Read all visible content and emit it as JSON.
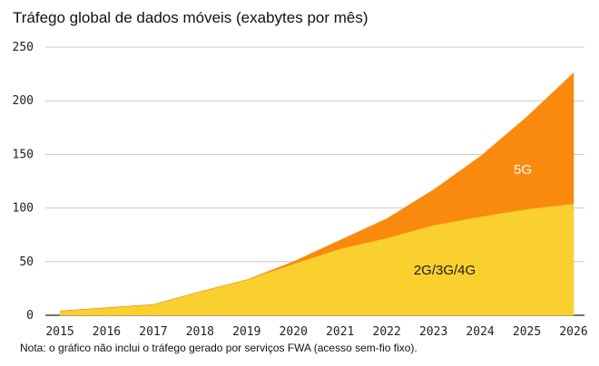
{
  "title": "Tráfego global de dados móveis (exabytes por mês)",
  "note": "Nota: o gráfico não inclui o tráfego gerado por serviços FWA (acesso sem-fio fixo).",
  "chart_data": {
    "type": "area",
    "stacked": true,
    "x": [
      2015,
      2016,
      2017,
      2018,
      2019,
      2020,
      2021,
      2022,
      2023,
      2024,
      2025,
      2026
    ],
    "series": [
      {
        "name": "2G/3G/4G",
        "color": "#f9d02e",
        "values": [
          4,
          7,
          10,
          22,
          33,
          48,
          62,
          72,
          84,
          92,
          99,
          104
        ]
      },
      {
        "name": "5G",
        "color": "#f98a0e",
        "values": [
          0,
          0,
          0,
          0,
          0,
          2,
          8,
          18,
          33,
          56,
          86,
          122
        ]
      }
    ],
    "ylim": [
      0,
      250
    ],
    "yticks": [
      0,
      50,
      100,
      150,
      200,
      250
    ],
    "grid": true,
    "legend": "inline"
  }
}
